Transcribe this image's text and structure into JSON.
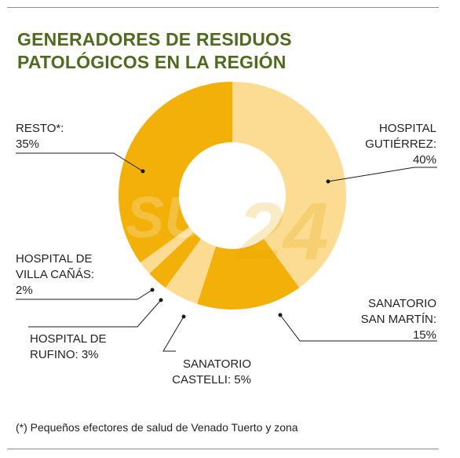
{
  "title": {
    "line1": "GENERADORES DE RESIDUOS",
    "line2": "PATOLÓGICOS EN LA REGIÓN"
  },
  "footnote": "(*) Pequeños efectores de salud de Venado Tuerto y zona",
  "watermark": {
    "left": "SU",
    "right": "24"
  },
  "colors": {
    "title": "#4e6b1f",
    "dark_slice": "#f2b008",
    "light_slice": "#fcdb92",
    "rule": "#8e8e8e"
  },
  "chart_data": {
    "type": "pie",
    "variant": "donut",
    "series": [
      {
        "label_lines": [
          "HOSPITAL",
          "GUTIÉRREZ:",
          "40%"
        ],
        "value": 40,
        "color": "#fcdb92"
      },
      {
        "label_lines": [
          "SANATORIO",
          "SAN MARTÍN:",
          "15%"
        ],
        "value": 15,
        "color": "#f2b008"
      },
      {
        "label_lines": [
          "SANATORIO",
          "CASTELLI: 5%"
        ],
        "value": 5,
        "color": "#fcdb92"
      },
      {
        "label_lines": [
          "HOSPITAL DE",
          "RUFINO: 3%"
        ],
        "value": 3,
        "color": "#f2b008"
      },
      {
        "label_lines": [
          "HOSPITAL DE",
          "VILLA CAÑÁS:",
          "2%"
        ],
        "value": 2,
        "color": "#fcdb92"
      },
      {
        "label_lines": [
          "RESTO*:",
          "35%"
        ],
        "value": 35,
        "color": "#f2b008"
      }
    ]
  }
}
